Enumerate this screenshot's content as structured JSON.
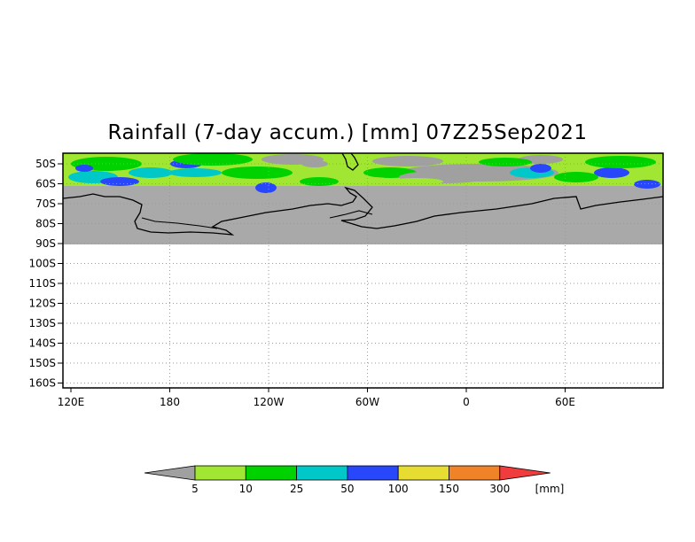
{
  "title": "Rainfall (7-day accum.) [mm] 07Z25Sep2021",
  "map": {
    "lat_labels": [
      "50S",
      "60S",
      "70S",
      "80S",
      "90S",
      "100S",
      "110S",
      "120S",
      "130S",
      "140S",
      "150S",
      "160S"
    ],
    "lon_labels": [
      "120E",
      "180",
      "120W",
      "60W",
      "0",
      "60E"
    ],
    "land_color": "#a9a9a9",
    "ocean_color": "#ffffff",
    "grid_style": "dotted"
  },
  "legend": {
    "unit": "[mm]",
    "thresholds": [
      "5",
      "10",
      "25",
      "50",
      "100",
      "150",
      "300"
    ],
    "colors": [
      "#a0a0a0",
      "#a0e632",
      "#00d200",
      "#00c8c8",
      "#2846fa",
      "#e6dc32",
      "#f08228",
      "#f03c3c"
    ]
  }
}
